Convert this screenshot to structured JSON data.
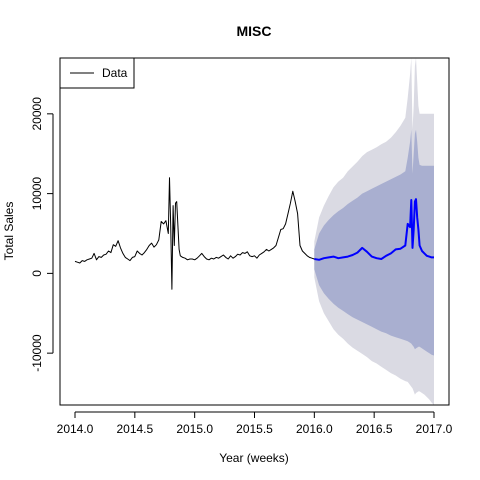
{
  "chart_data": {
    "type": "line",
    "title": "MISC",
    "xlabel": "Year (weeks)",
    "ylabel": "Total Sales",
    "xlim": [
      2014.0,
      2017.0
    ],
    "ylim": [
      -16500,
      27000
    ],
    "x_ticks": [
      2014.0,
      2014.5,
      2015.0,
      2015.5,
      2016.0,
      2016.5,
      2017.0
    ],
    "x_tick_labels": [
      "2014.0",
      "2014.5",
      "2015.0",
      "2015.5",
      "2016.0",
      "2016.5",
      "2017.0"
    ],
    "y_ticks": [
      -10000,
      0,
      10000,
      20000
    ],
    "y_tick_labels": [
      "-10000",
      "0",
      "10000",
      "20000"
    ],
    "legend": {
      "position": "top-left",
      "entries": [
        "Data"
      ]
    },
    "colors": {
      "data": "#000000",
      "forecast": "#0000ff",
      "band_80": "#a9afd0",
      "band_95": "#dadae3"
    },
    "series": [
      {
        "name": "Data",
        "x": [
          2014.0,
          2014.02,
          2014.04,
          2014.06,
          2014.08,
          2014.1,
          2014.12,
          2014.14,
          2014.16,
          2014.18,
          2014.2,
          2014.22,
          2014.24,
          2014.26,
          2014.28,
          2014.3,
          2014.32,
          2014.34,
          2014.36,
          2014.38,
          2014.4,
          2014.42,
          2014.44,
          2014.46,
          2014.48,
          2014.5,
          2014.52,
          2014.54,
          2014.56,
          2014.58,
          2014.6,
          2014.62,
          2014.64,
          2014.66,
          2014.68,
          2014.7,
          2014.72,
          2014.74,
          2014.76,
          2014.78,
          2014.79,
          2014.8,
          2014.81,
          2014.82,
          2014.83,
          2014.84,
          2014.85,
          2014.86,
          2014.87,
          2014.88,
          2014.9,
          2014.92,
          2014.94,
          2014.96,
          2014.98,
          2015.0,
          2015.02,
          2015.04,
          2015.06,
          2015.08,
          2015.1,
          2015.12,
          2015.14,
          2015.16,
          2015.18,
          2015.2,
          2015.22,
          2015.24,
          2015.26,
          2015.28,
          2015.3,
          2015.32,
          2015.34,
          2015.36,
          2015.38,
          2015.4,
          2015.42,
          2015.44,
          2015.46,
          2015.48,
          2015.5,
          2015.52,
          2015.54,
          2015.56,
          2015.58,
          2015.6,
          2015.62,
          2015.64,
          2015.66,
          2015.68,
          2015.7,
          2015.72,
          2015.74,
          2015.76,
          2015.78,
          2015.8,
          2015.82,
          2015.84,
          2015.86,
          2015.88,
          2015.9,
          2015.92,
          2015.94,
          2015.96,
          2015.98,
          2016.0
        ],
        "values": [
          1500,
          1400,
          1300,
          1600,
          1500,
          1700,
          1800,
          1900,
          2500,
          1700,
          2100,
          2000,
          2300,
          2400,
          2800,
          2600,
          3600,
          3400,
          4100,
          3200,
          2500,
          2000,
          1800,
          1600,
          2000,
          2100,
          2800,
          2500,
          2300,
          2600,
          3000,
          3500,
          3800,
          3300,
          3600,
          4200,
          6500,
          6200,
          6600,
          5000,
          12000,
          6000,
          -2000,
          8500,
          3500,
          8800,
          9000,
          6000,
          3000,
          2200,
          2000,
          1900,
          1700,
          1800,
          1800,
          1700,
          1900,
          2200,
          2500,
          2100,
          1800,
          1700,
          1900,
          1800,
          2000,
          1900,
          2100,
          2300,
          2000,
          1800,
          2200,
          1900,
          2100,
          2400,
          2300,
          2600,
          2500,
          2700,
          2200,
          2100,
          2200,
          1900,
          2300,
          2500,
          2700,
          3000,
          2800,
          3000,
          3200,
          3500,
          4500,
          5500,
          5600,
          6200,
          7500,
          8800,
          10300,
          9000,
          7500,
          3500,
          2800,
          2500,
          2200,
          2000,
          1900,
          1800
        ]
      },
      {
        "name": "",
        "x": [
          2016.0,
          2016.04,
          2016.08,
          2016.12,
          2016.16,
          2016.2,
          2016.24,
          2016.28,
          2016.32,
          2016.36,
          2016.4,
          2016.44,
          2016.48,
          2016.52,
          2016.56,
          2016.6,
          2016.64,
          2016.68,
          2016.72,
          2016.76,
          2016.78,
          2016.8,
          2016.81,
          2016.82,
          2016.83,
          2016.84,
          2016.85,
          2016.86,
          2016.87,
          2016.88,
          2016.9,
          2016.92,
          2016.94,
          2016.96,
          2016.98,
          2017.0
        ],
        "values": [
          1800,
          1700,
          1900,
          2000,
          2100,
          1900,
          2000,
          2100,
          2300,
          2600,
          3200,
          2700,
          2100,
          1900,
          1800,
          2200,
          2500,
          3000,
          3100,
          3500,
          6200,
          5800,
          9200,
          3200,
          5500,
          9000,
          9300,
          7000,
          5500,
          3500,
          2800,
          2500,
          2200,
          2100,
          2000,
          2000
        ]
      }
    ],
    "band_95": {
      "x": [
        2016.0,
        2016.04,
        2016.08,
        2016.12,
        2016.16,
        2016.2,
        2016.24,
        2016.28,
        2016.32,
        2016.36,
        2016.4,
        2016.44,
        2016.48,
        2016.52,
        2016.56,
        2016.6,
        2016.64,
        2016.68,
        2016.72,
        2016.76,
        2016.78,
        2016.8,
        2016.81,
        2016.82,
        2016.83,
        2016.84,
        2016.85,
        2016.86,
        2016.87,
        2016.88,
        2016.9,
        2016.92,
        2016.94,
        2016.96,
        2016.98,
        2017.0
      ],
      "upper": [
        4000,
        7000,
        8500,
        9700,
        10800,
        11500,
        12000,
        12800,
        13400,
        14000,
        14700,
        15200,
        15500,
        15800,
        16200,
        16500,
        17000,
        17700,
        18500,
        19500,
        22000,
        25000,
        27000,
        18000,
        21000,
        26000,
        27000,
        24000,
        21000,
        20000,
        20000,
        20000,
        20000,
        20000,
        20000,
        20000
      ],
      "lower": [
        -500,
        -3500,
        -5000,
        -6000,
        -7000,
        -7700,
        -8200,
        -8800,
        -9300,
        -9700,
        -10100,
        -10500,
        -11000,
        -11300,
        -11700,
        -12100,
        -12500,
        -12800,
        -13200,
        -13500,
        -13600,
        -14000,
        -14200,
        -14400,
        -14800,
        -15200,
        -15000,
        -14900,
        -14800,
        -14800,
        -15000,
        -15200,
        -15500,
        -15800,
        -16200,
        -16500
      ]
    },
    "band_80": {
      "x": [
        2016.0,
        2016.04,
        2016.08,
        2016.12,
        2016.16,
        2016.2,
        2016.24,
        2016.28,
        2016.32,
        2016.36,
        2016.4,
        2016.44,
        2016.48,
        2016.52,
        2016.56,
        2016.6,
        2016.64,
        2016.68,
        2016.72,
        2016.76,
        2016.78,
        2016.8,
        2016.81,
        2016.82,
        2016.83,
        2016.84,
        2016.85,
        2016.86,
        2016.87,
        2016.88,
        2016.9,
        2016.92,
        2016.94,
        2016.96,
        2016.98,
        2017.0
      ],
      "upper": [
        3000,
        5000,
        6000,
        6700,
        7300,
        7800,
        8200,
        8700,
        9100,
        9500,
        10000,
        10300,
        10600,
        10900,
        11200,
        11500,
        11800,
        12100,
        12400,
        12800,
        14500,
        16500,
        18000,
        12500,
        15000,
        17500,
        18000,
        16500,
        14500,
        13600,
        13500,
        13500,
        13500,
        13500,
        13500,
        13500
      ],
      "lower": [
        500,
        -1500,
        -2500,
        -3200,
        -3800,
        -4300,
        -4700,
        -5100,
        -5500,
        -5800,
        -6100,
        -6400,
        -6700,
        -7000,
        -7300,
        -7500,
        -7800,
        -8000,
        -8200,
        -8400,
        -8500,
        -8700,
        -8800,
        -9000,
        -9200,
        -9500,
        -9400,
        -9300,
        -9200,
        -9200,
        -9400,
        -9600,
        -9800,
        -10000,
        -10200,
        -10300
      ]
    }
  }
}
